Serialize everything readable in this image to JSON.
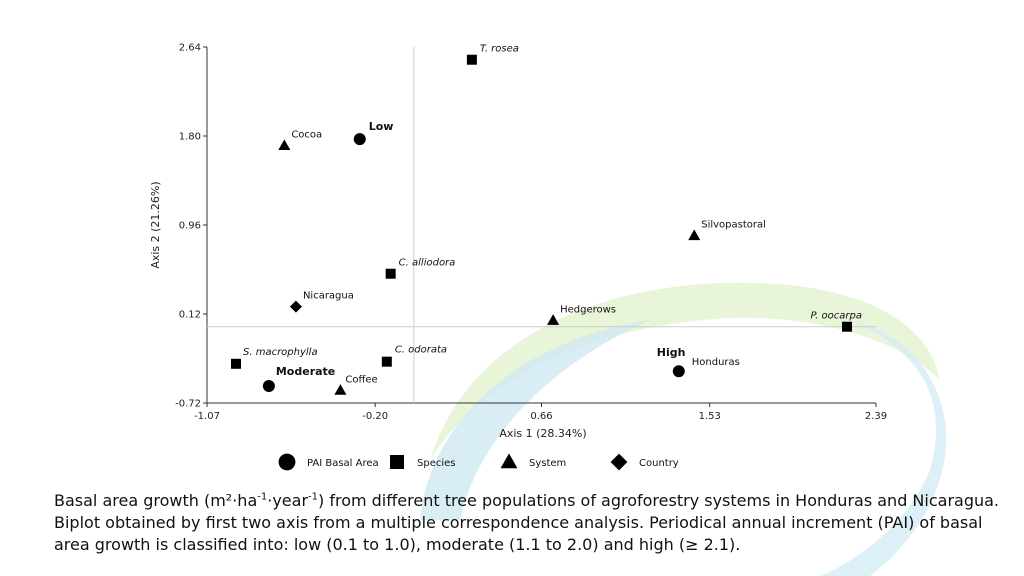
{
  "chart_data": {
    "type": "scatter",
    "xlabel": "Axis 1 (28.34%)",
    "ylabel": "Axis 2 (21.26%)",
    "xlim": [
      -1.07,
      2.39
    ],
    "ylim": [
      -0.72,
      2.64
    ],
    "xticks": [
      "-1.07",
      "-0.20",
      "0.66",
      "1.53",
      "2.39"
    ],
    "yticks": [
      "2.64",
      "1.80",
      "0.96",
      "0.12",
      "-0.72"
    ],
    "reference_lines": {
      "x": 0.0,
      "y": 0.0
    },
    "legend_placement": "bottom",
    "legend": [
      {
        "name": "PAI Basal Area",
        "marker": "circle"
      },
      {
        "name": "Species",
        "marker": "square"
      },
      {
        "name": "System",
        "marker": "triangle"
      },
      {
        "name": "Country",
        "marker": "diamond"
      }
    ],
    "points": [
      {
        "label": "T. rosea",
        "group": "Species",
        "marker": "square",
        "style": "italic",
        "x": 0.3,
        "y": 2.52
      },
      {
        "label": "C. alliodora",
        "group": "Species",
        "marker": "square",
        "style": "italic",
        "x": -0.12,
        "y": 0.5
      },
      {
        "label": "S. macrophylla",
        "group": "Species",
        "marker": "square",
        "style": "italic",
        "x": -0.92,
        "y": -0.35
      },
      {
        "label": "C. odorata",
        "group": "Species",
        "marker": "square",
        "style": "italic",
        "x": -0.14,
        "y": -0.33
      },
      {
        "label": "P. oocarpa",
        "group": "Species",
        "marker": "square",
        "style": "italic",
        "x": 2.24,
        "y": 0.0
      },
      {
        "label": "Low",
        "group": "PAI Basal Area",
        "marker": "circle",
        "style": "bold",
        "x": -0.28,
        "y": 1.77
      },
      {
        "label": "Moderate",
        "group": "PAI Basal Area",
        "marker": "circle",
        "style": "bold",
        "x": -0.75,
        "y": -0.56
      },
      {
        "label": "High",
        "group": "PAI Basal Area",
        "marker": "circle",
        "style": "bold",
        "x": 1.37,
        "y": -0.42
      },
      {
        "label": "Cocoa",
        "group": "System",
        "marker": "triangle",
        "style": "normal",
        "x": -0.67,
        "y": 1.71
      },
      {
        "label": "Silvopastoral",
        "group": "System",
        "marker": "triangle",
        "style": "normal",
        "x": 1.45,
        "y": 0.86
      },
      {
        "label": "Hedgerows",
        "group": "System",
        "marker": "triangle",
        "style": "normal",
        "x": 0.72,
        "y": 0.06
      },
      {
        "label": "Coffee",
        "group": "System",
        "marker": "triangle",
        "style": "normal",
        "x": -0.38,
        "y": -0.6
      },
      {
        "label": "Nicaragua",
        "group": "Country",
        "marker": "diamond",
        "style": "normal",
        "x": -0.61,
        "y": 0.19
      },
      {
        "label": "Honduras",
        "group": "Country",
        "marker": "diamond",
        "style": "normal",
        "x": 1.37,
        "y": -0.42
      }
    ]
  },
  "caption": {
    "part1": "Basal area growth (m²·ha",
    "sup1": "-1",
    "part2": "·year",
    "sup2": "-1",
    "part3": ") from different tree populations of agroforestry systems in Honduras and Nicaragua. Biplot obtained by first two axis from a multiple correspondence analysis. Periodical annual increment (PAI) of basal area growth is classified into: low (0.1 to 1.0), moderate (1.1 to 2.0) and high (≥ 2.1)."
  },
  "colors": {
    "marker": "#000000",
    "reference_line": "#cccccc",
    "swoosh_blue": "#bfe0f0",
    "swoosh_green": "#dff0c8"
  }
}
